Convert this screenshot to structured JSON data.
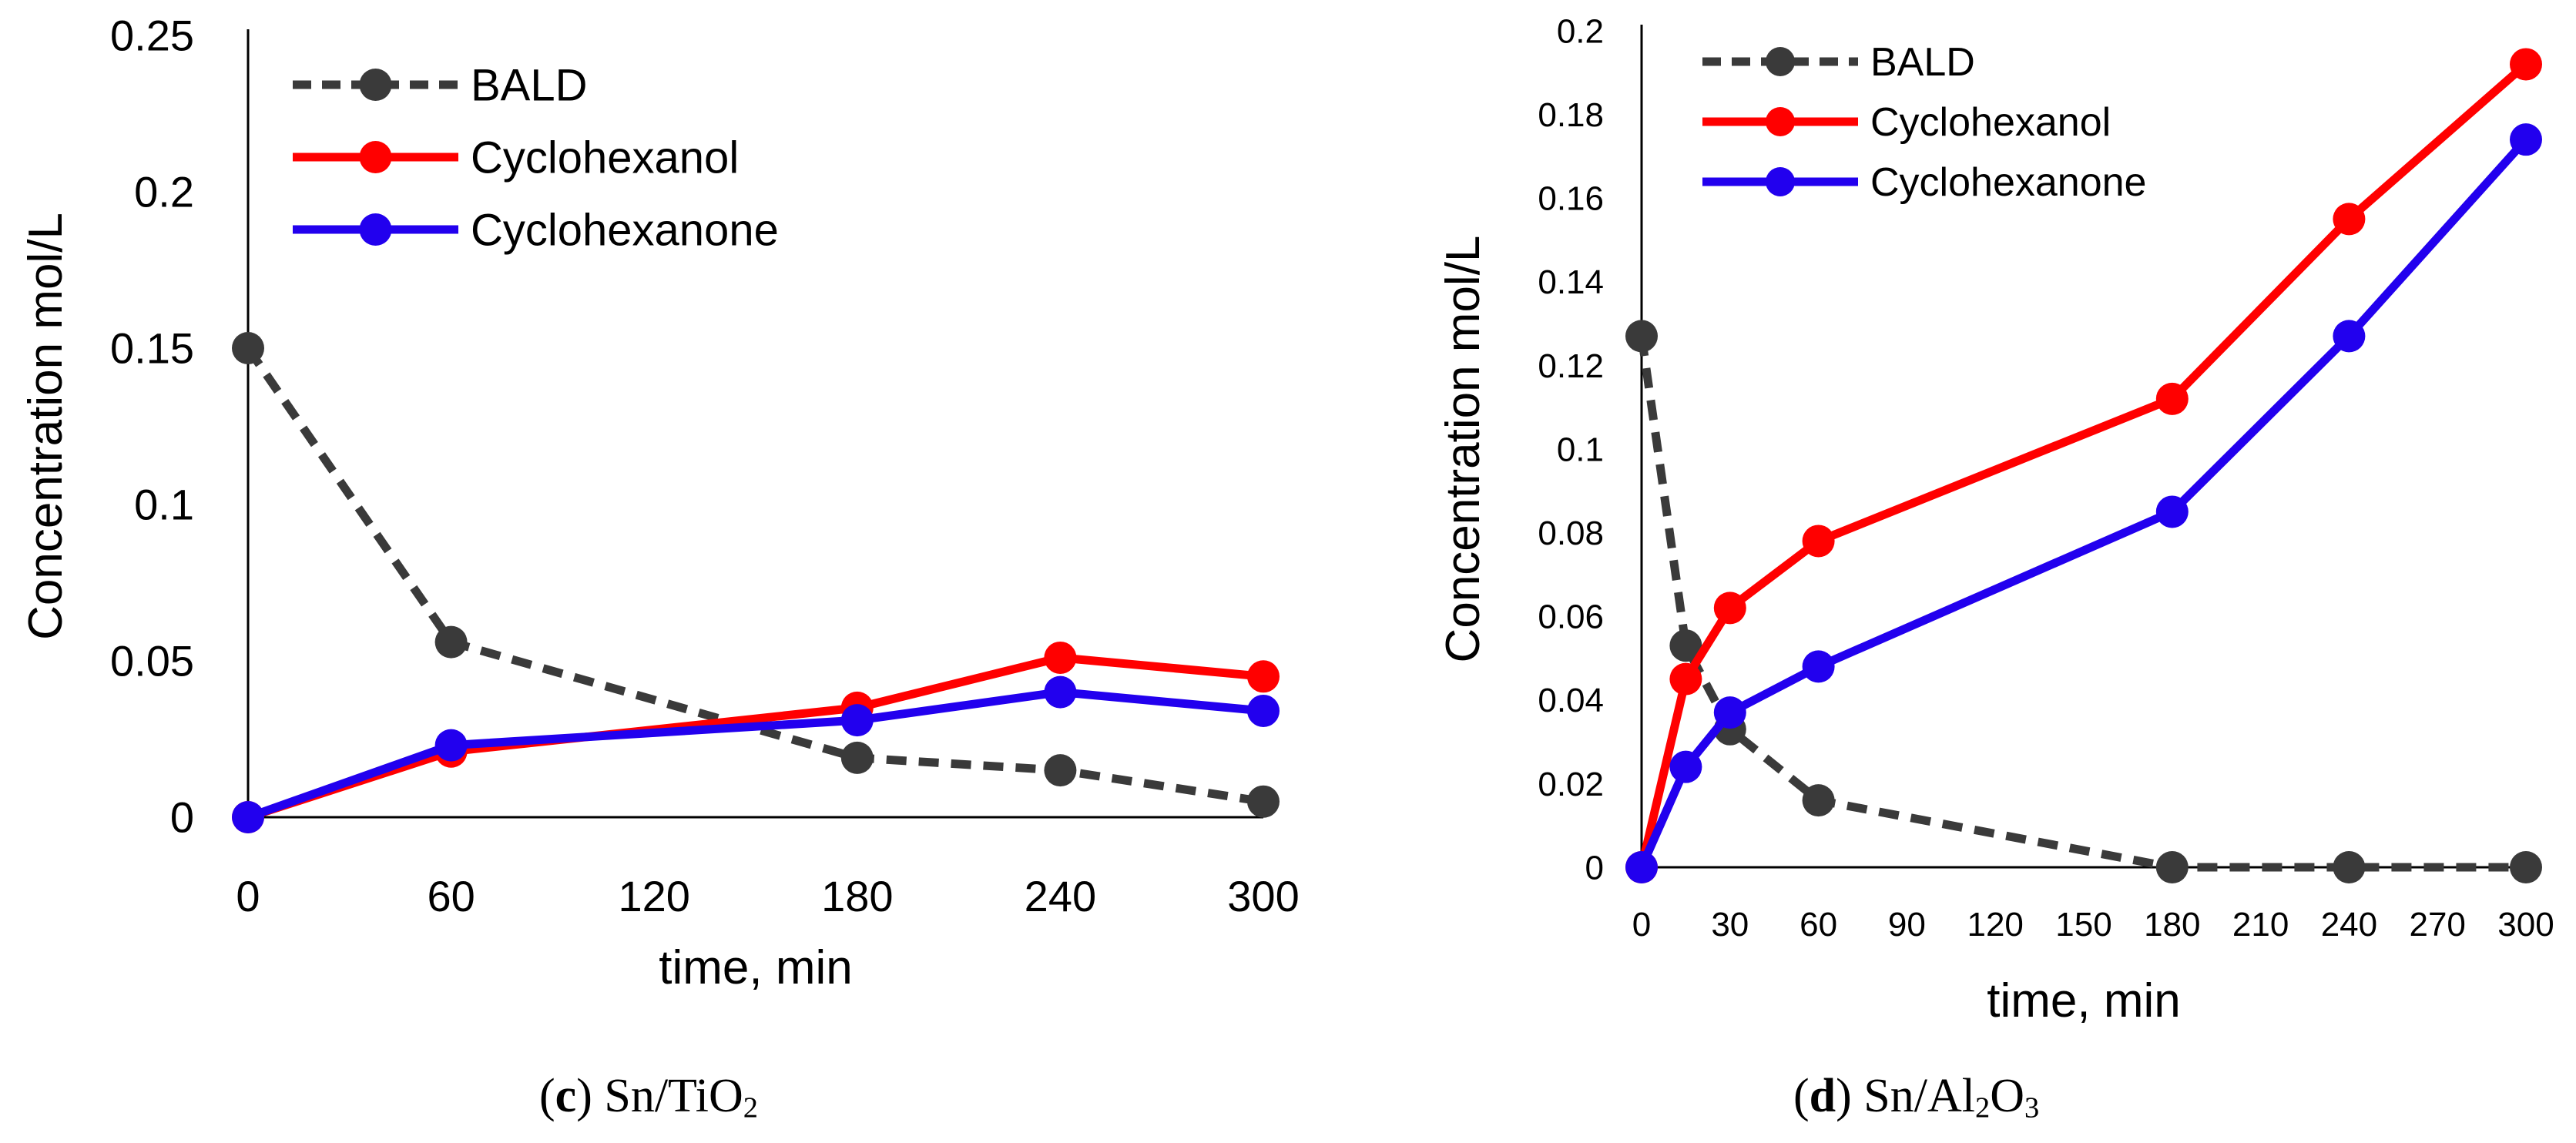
{
  "chart_data": [
    {
      "type": "line",
      "panel_label": "c",
      "caption_text": "Sn/TiO",
      "caption_sub": "2",
      "xlabel": "time, min",
      "ylabel": "Concentration mol/L",
      "xlim": [
        0,
        300
      ],
      "ylim": [
        0,
        0.25
      ],
      "xticks": [
        "0",
        "60",
        "120",
        "180",
        "240",
        "300"
      ],
      "xtick_values": [
        0,
        60,
        120,
        180,
        240,
        300
      ],
      "yticks": [
        "0",
        "0.05",
        "0.1",
        "0.15",
        "0.2",
        "0.25"
      ],
      "ytick_values": [
        0,
        0.05,
        0.1,
        0.15,
        0.2,
        0.25
      ],
      "legend_position": "top-left",
      "series": [
        {
          "name": "BALD",
          "color": "#3a3a3a",
          "dashed": true,
          "x": [
            0,
            60,
            180,
            240,
            300
          ],
          "y": [
            0.15,
            0.056,
            0.019,
            0.015,
            0.005
          ]
        },
        {
          "name": "Cyclohexanol",
          "color": "#ff0000",
          "dashed": false,
          "x": [
            0,
            60,
            180,
            240,
            300
          ],
          "y": [
            0,
            0.021,
            0.035,
            0.051,
            0.045
          ]
        },
        {
          "name": "Cyclohexanone",
          "color": "#2200ee",
          "dashed": false,
          "x": [
            0,
            60,
            180,
            240,
            300
          ],
          "y": [
            0,
            0.023,
            0.031,
            0.04,
            0.034
          ]
        }
      ]
    },
    {
      "type": "line",
      "panel_label": "d",
      "caption_text": "Sn/Al",
      "caption_sub": "2",
      "caption_text2": "O",
      "caption_sub2": "3",
      "xlabel": "time, min",
      "ylabel": "Concentration mol/L",
      "xlim": [
        0,
        300
      ],
      "ylim": [
        0,
        0.2
      ],
      "xticks": [
        "0",
        "30",
        "60",
        "90",
        "120",
        "150",
        "180",
        "210",
        "240",
        "270",
        "300"
      ],
      "xtick_values": [
        0,
        30,
        60,
        90,
        120,
        150,
        180,
        210,
        240,
        270,
        300
      ],
      "yticks": [
        "0",
        "0.02",
        "0.04",
        "0.06",
        "0.08",
        "0.1",
        "0.12",
        "0.14",
        "0.16",
        "0.18",
        "0.2"
      ],
      "ytick_values": [
        0,
        0.02,
        0.04,
        0.06,
        0.08,
        0.1,
        0.12,
        0.14,
        0.16,
        0.18,
        0.2
      ],
      "legend_position": "top-left",
      "series": [
        {
          "name": "BALD",
          "color": "#3a3a3a",
          "dashed": true,
          "x": [
            0,
            15,
            30,
            60,
            180,
            240,
            300
          ],
          "y": [
            0.127,
            0.053,
            0.033,
            0.016,
            0,
            0,
            0
          ]
        },
        {
          "name": "Cyclohexanol",
          "color": "#ff0000",
          "dashed": false,
          "x": [
            0,
            15,
            30,
            60,
            180,
            240,
            300
          ],
          "y": [
            0,
            0.045,
            0.062,
            0.078,
            0.112,
            0.155,
            0.192
          ]
        },
        {
          "name": "Cyclohexanone",
          "color": "#2200ee",
          "dashed": false,
          "x": [
            0,
            15,
            30,
            60,
            180,
            240,
            300
          ],
          "y": [
            0,
            0.024,
            0.037,
            0.048,
            0.085,
            0.127,
            0.174
          ]
        }
      ]
    }
  ]
}
